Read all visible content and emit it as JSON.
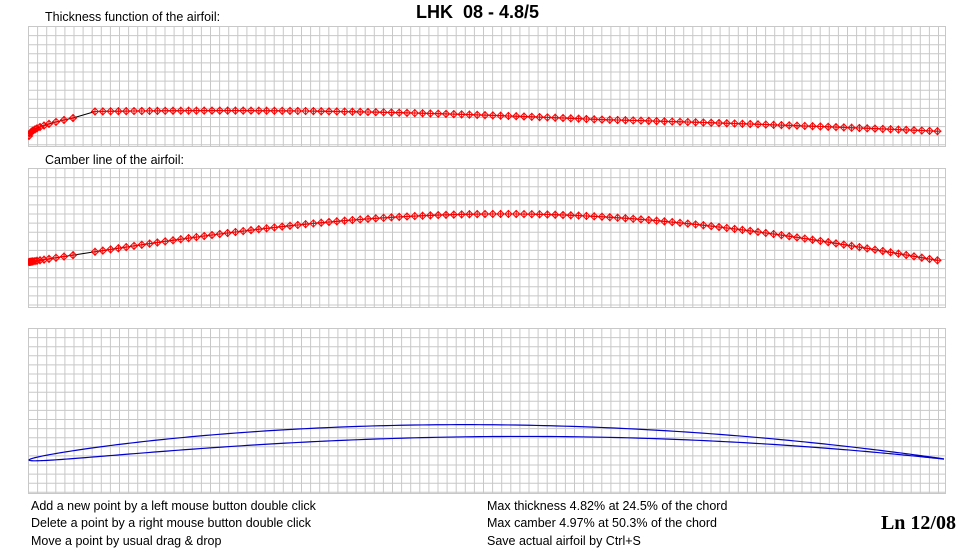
{
  "title": "LHK  08 - 4.8/5",
  "thickness_panel": {
    "label": "Thickness function of the airfoil:"
  },
  "camber_panel": {
    "label": "Camber line of the airfoil:"
  },
  "hints": [
    "Add a new point by a left mouse button double click",
    "Delete a point by a right mouse button double click",
    "Move a point by usual drag & drop"
  ],
  "stats": {
    "max_thickness": "Max thickness 4.82% at 24.5% of the chord",
    "max_camber": "Max camber 4.97% at 50.3% of the chord",
    "save_hint": "Save actual airfoil by Ctrl+S"
  },
  "badge": "Ln 12/08",
  "colors": {
    "grid": "#c8c8c8",
    "control_points": "#ff0000",
    "curve": "#000000",
    "airfoil_outline": "#0000cc"
  },
  "chart_data": {
    "type": "line",
    "max_thickness_pct": 4.82,
    "max_thickness_at_pct_chord": 24.5,
    "max_camber_pct": 4.97,
    "max_camber_at_pct_chord": 50.3
  }
}
